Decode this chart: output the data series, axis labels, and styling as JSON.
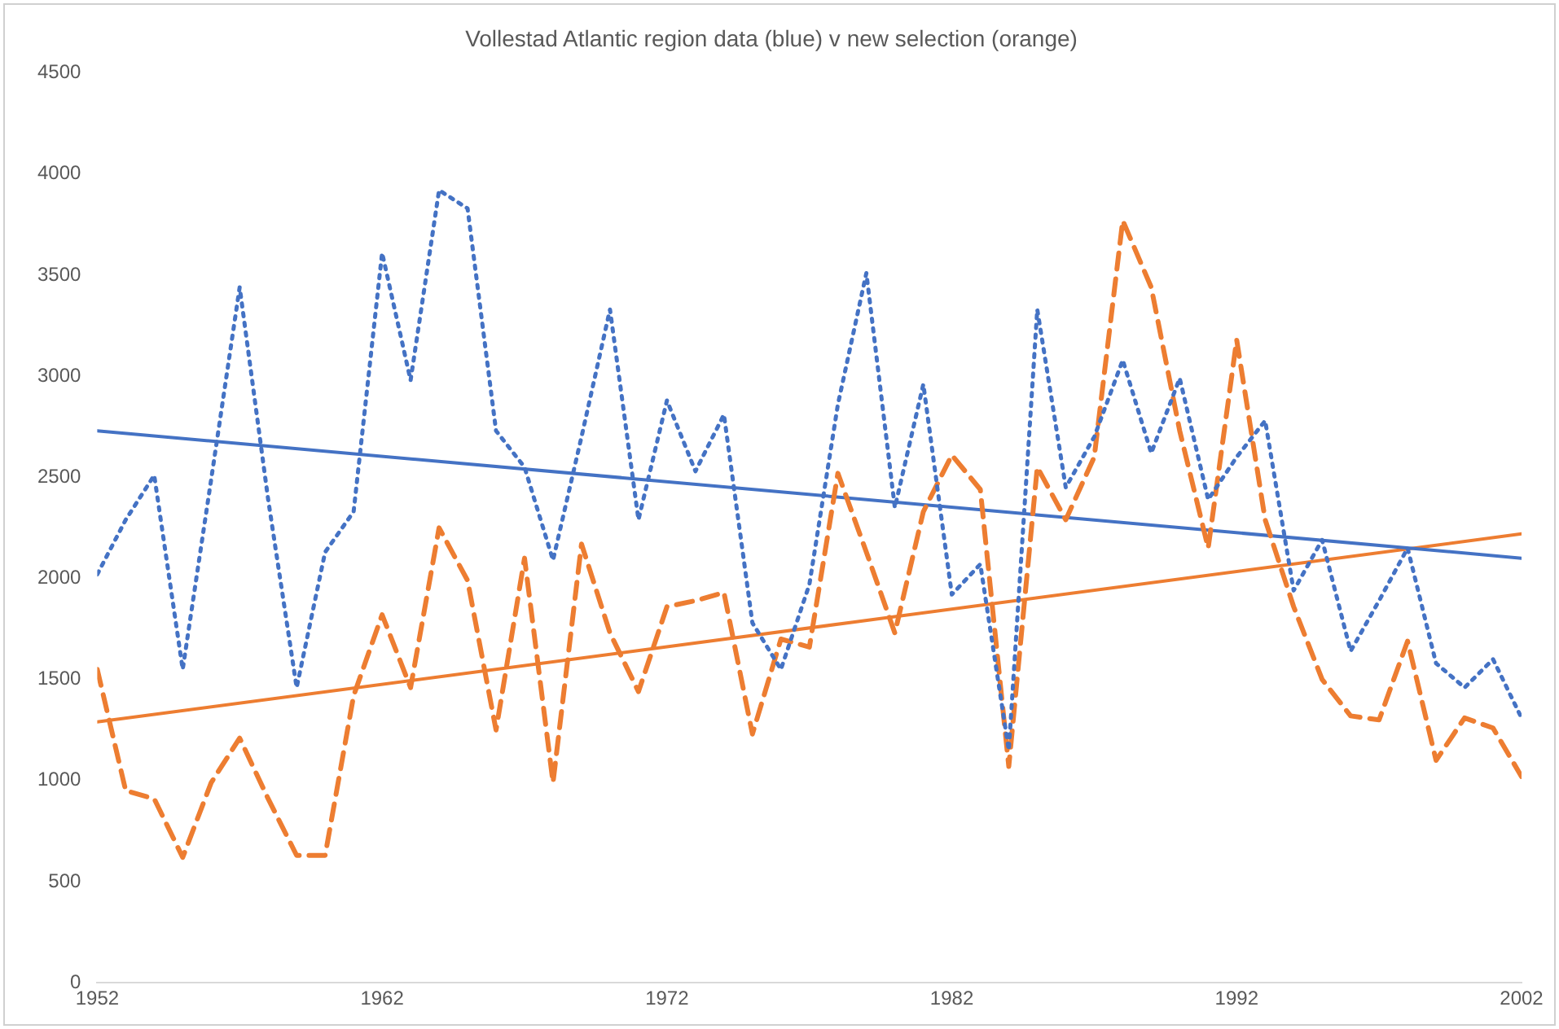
{
  "chart_data": {
    "type": "line",
    "title": "Vollestad Atlantic region data (blue) v new selection (orange)",
    "x": [
      1952,
      1953,
      1954,
      1955,
      1956,
      1957,
      1958,
      1959,
      1960,
      1961,
      1962,
      1963,
      1964,
      1965,
      1966,
      1967,
      1968,
      1969,
      1970,
      1971,
      1972,
      1973,
      1974,
      1975,
      1976,
      1977,
      1978,
      1979,
      1980,
      1981,
      1982,
      1983,
      1984,
      1985,
      1986,
      1987,
      1988,
      1989,
      1990,
      1991,
      1992,
      1993,
      1994,
      1995,
      1996,
      1997,
      1998,
      1999,
      2000,
      2001,
      2002
    ],
    "xlim": [
      1952,
      2002
    ],
    "xticks": [
      1952,
      1962,
      1972,
      1982,
      1992,
      2002
    ],
    "ylim": [
      0,
      4500
    ],
    "yticks": [
      0,
      500,
      1000,
      1500,
      2000,
      2500,
      3000,
      3500,
      4000,
      4500
    ],
    "grid": false,
    "legend": false,
    "marker": "none",
    "series": [
      {
        "color": "#4472c4",
        "line_style": "dotted",
        "values": [
          2020,
          2290,
          2510,
          1550,
          2490,
          3440,
          2390,
          1460,
          2130,
          2330,
          3610,
          2980,
          3920,
          3830,
          2730,
          2550,
          2090,
          2700,
          3330,
          2290,
          2880,
          2530,
          2810,
          1780,
          1550,
          1970,
          2860,
          3510,
          2350,
          2960,
          1920,
          2070,
          1150,
          3330,
          2450,
          2700,
          3080,
          2620,
          2990,
          2390,
          2600,
          2780,
          1940,
          2190,
          1640,
          1890,
          2150,
          1580,
          1460,
          1600,
          1310
        ]
      },
      {
        "color": "#ed7d31",
        "line_style": "dashed",
        "values": [
          1550,
          950,
          910,
          620,
          990,
          1210,
          910,
          630,
          630,
          1420,
          1820,
          1460,
          2250,
          1990,
          1250,
          2100,
          990,
          2170,
          1730,
          1440,
          1860,
          1890,
          1930,
          1230,
          1700,
          1660,
          2520,
          2130,
          1730,
          2330,
          2610,
          2440,
          1070,
          2550,
          2290,
          2600,
          3770,
          3440,
          2730,
          2150,
          3180,
          2290,
          1860,
          1500,
          1320,
          1300,
          1690,
          1100,
          1310,
          1260,
          1020
        ]
      },
      {
        "type": "line",
        "color": "#4472c4",
        "line_style": "solid",
        "values": [
          2730,
          null,
          null,
          null,
          null,
          null,
          null,
          null,
          null,
          null,
          null,
          null,
          null,
          null,
          null,
          null,
          null,
          null,
          null,
          null,
          null,
          null,
          null,
          null,
          null,
          null,
          null,
          null,
          null,
          null,
          null,
          null,
          null,
          null,
          null,
          null,
          null,
          null,
          null,
          null,
          null,
          null,
          null,
          null,
          null,
          null,
          null,
          null,
          null,
          null,
          2100
        ]
      },
      {
        "type": "line",
        "color": "#ed7d31",
        "line_style": "solid",
        "values": [
          1290,
          null,
          null,
          null,
          null,
          null,
          null,
          null,
          null,
          null,
          null,
          null,
          null,
          null,
          null,
          null,
          null,
          null,
          null,
          null,
          null,
          null,
          null,
          null,
          null,
          null,
          null,
          null,
          null,
          null,
          null,
          null,
          null,
          null,
          null,
          null,
          null,
          null,
          null,
          null,
          null,
          null,
          null,
          null,
          null,
          null,
          null,
          null,
          null,
          null,
          2220
        ]
      }
    ]
  }
}
